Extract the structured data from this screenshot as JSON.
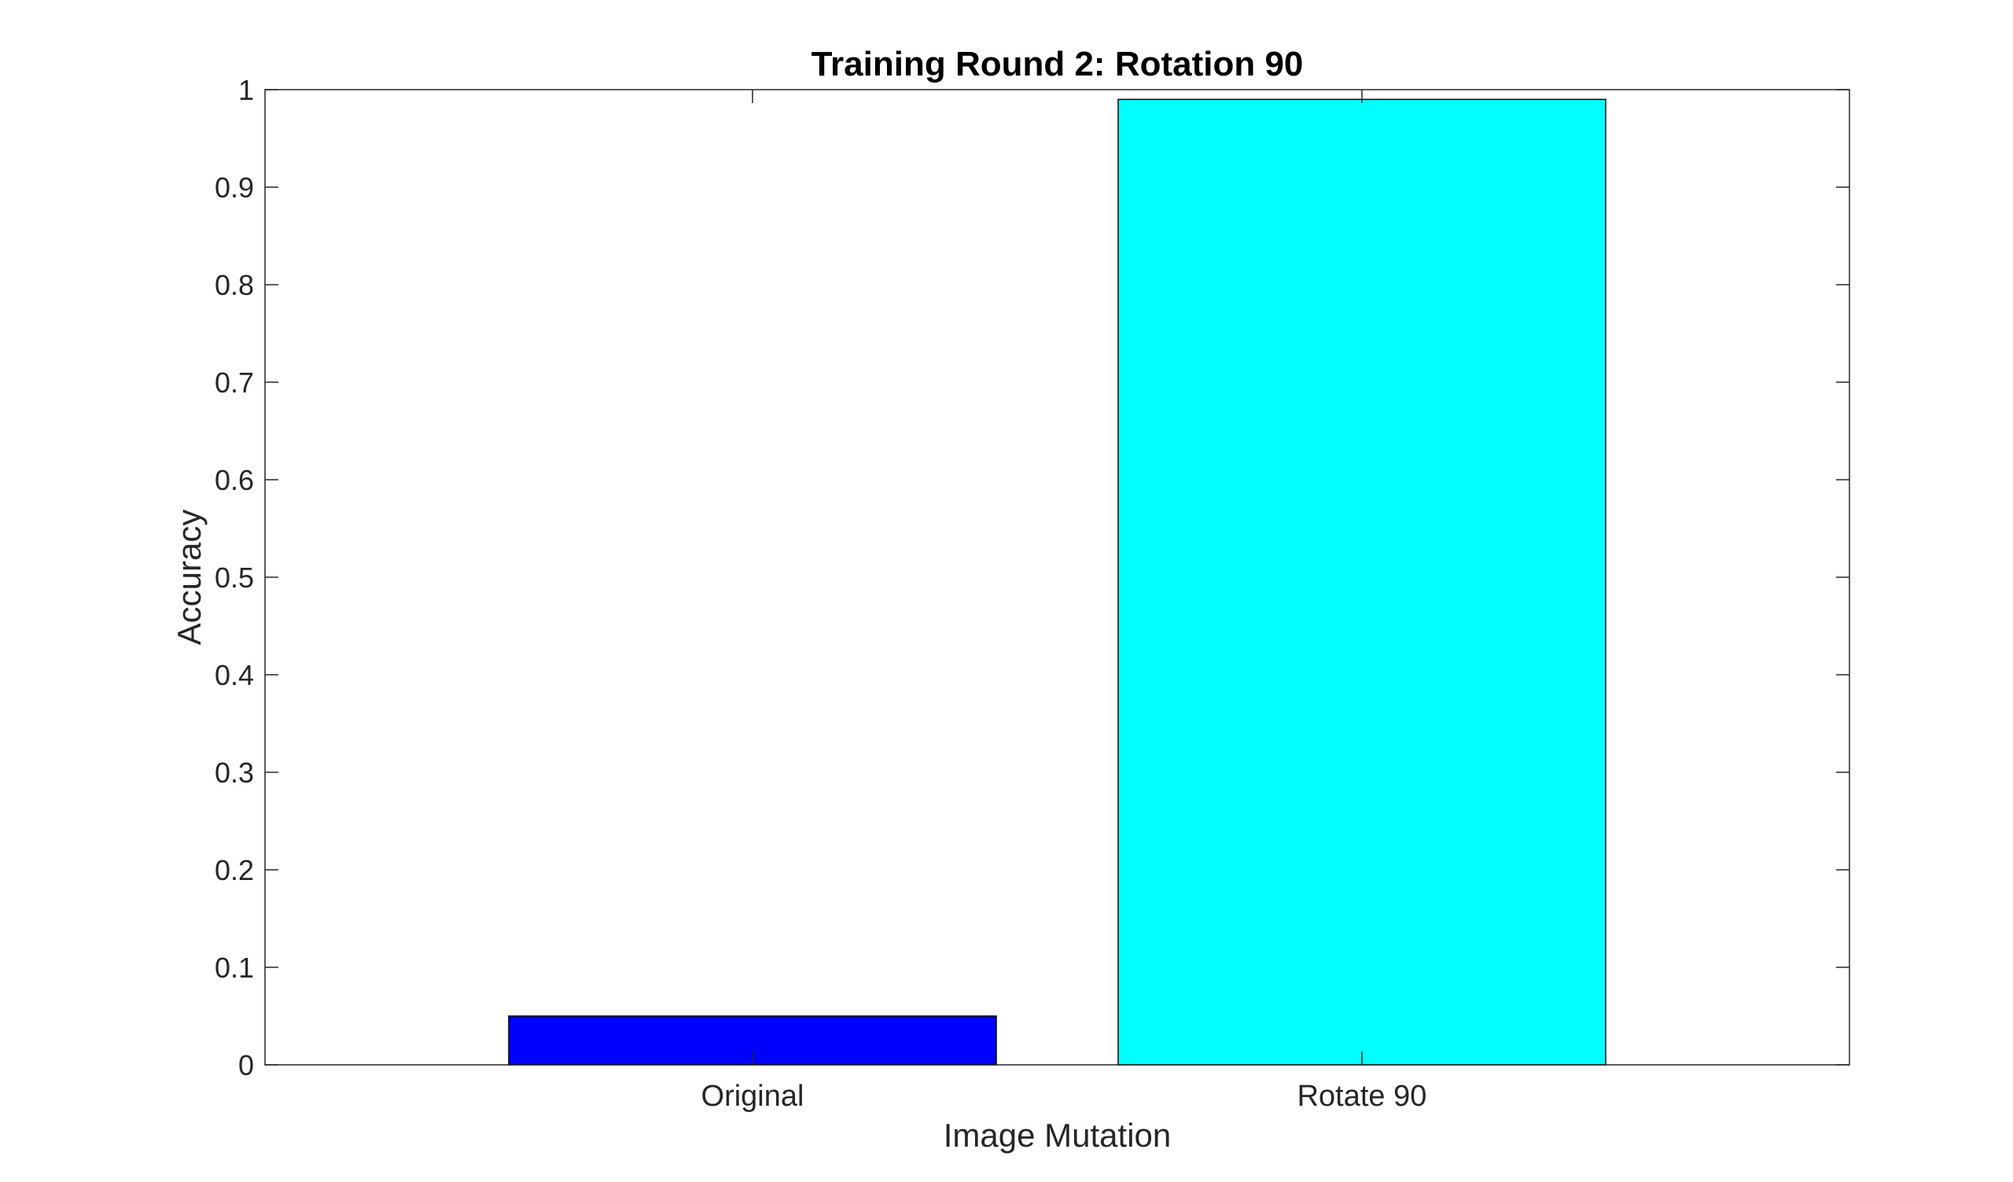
{
  "chart_data": {
    "type": "bar",
    "title": "Training Round 2: Rotation 90",
    "xlabel": "Image Mutation",
    "ylabel": "Accuracy",
    "categories": [
      "Original",
      "Rotate 90"
    ],
    "values": [
      0.05,
      0.99
    ],
    "bar_colors": [
      "#0000ff",
      "#00ffff"
    ],
    "ylim": [
      0,
      1
    ],
    "yticks": [
      "0",
      "0.1",
      "0.2",
      "0.3",
      "0.4",
      "0.5",
      "0.6",
      "0.7",
      "0.8",
      "0.9",
      "1"
    ],
    "grid": false,
    "legend": "none"
  }
}
